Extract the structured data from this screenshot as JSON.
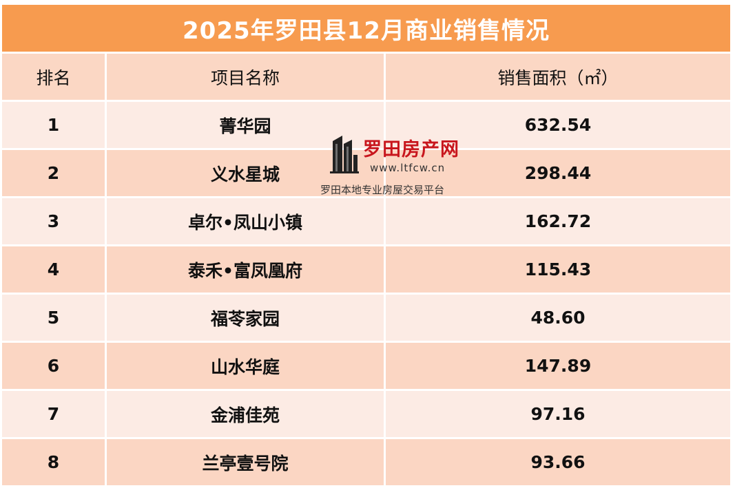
{
  "title": "2025年罗田县12月商业销售情况",
  "columns": [
    "排名",
    "项目名称",
    "销售面积（㎡）"
  ],
  "rows": [
    {
      "rank": "1",
      "name": "菁华园",
      "area": "632.54"
    },
    {
      "rank": "2",
      "name": "义水星城",
      "area": "298.44"
    },
    {
      "rank": "3",
      "name": "卓尔•凤山小镇",
      "area": "162.72"
    },
    {
      "rank": "4",
      "name": "泰禾•富凤凰府",
      "area": "115.43"
    },
    {
      "rank": "5",
      "name": "福苓家园",
      "area": "48.60"
    },
    {
      "rank": "6",
      "name": "山水华庭",
      "area": "147.89"
    },
    {
      "rank": "7",
      "name": "金浦佳苑",
      "area": "97.16"
    },
    {
      "rank": "8",
      "name": "兰亭壹号院",
      "area": "93.66"
    }
  ],
  "watermark": {
    "name": "罗田房产网",
    "url": "www.ltfcw.cn",
    "slogan": "罗田本地专业房屋交易平台",
    "icon": "building-logo-icon"
  },
  "colors": {
    "title_bg": "#f79b4f",
    "header_bg": "#fbd7c4",
    "row_light": "#fcebe4",
    "row_dark": "#fbd6c3",
    "watermark_red": "#c8161d"
  }
}
